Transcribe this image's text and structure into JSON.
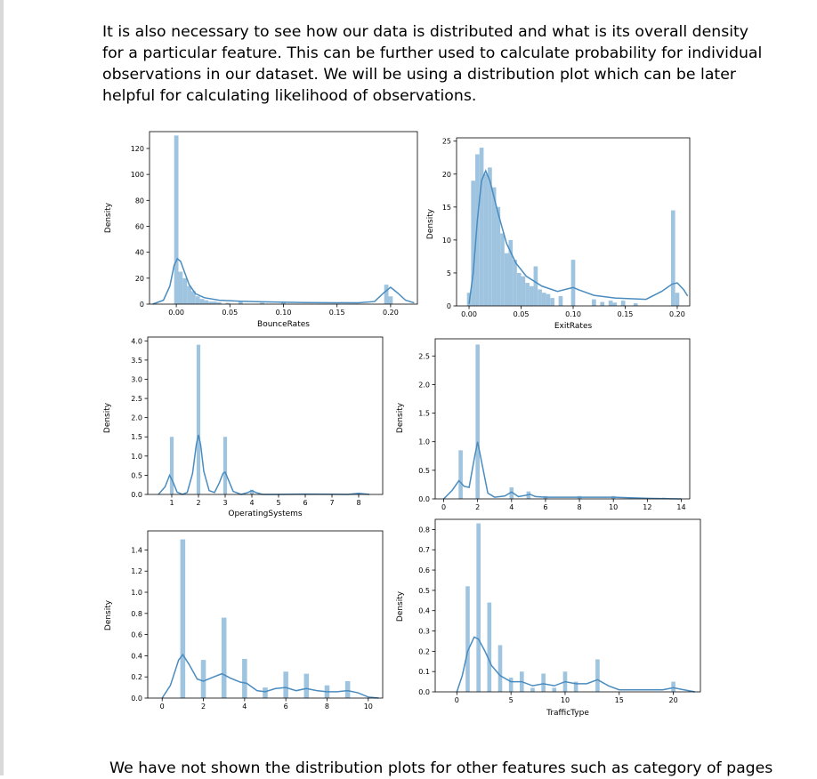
{
  "text": {
    "intro": "It is also necessary to see how our data is distributed and what is its overall density for a particular feature. This can be further used to calculate probability for individual observations in our dataset. We will be using a distribution plot which can be later helpful for calculating likelihood of observations.",
    "outro": "We have not shown the distribution plots for other features such as category of pages"
  },
  "colors": {
    "bar": "#9fc4e0",
    "line": "#4a8cbf"
  },
  "chart_data": [
    {
      "id": "bounce",
      "type": "bar",
      "xlabel": "BounceRates",
      "ylabel": "Density",
      "xlim": [
        -0.025,
        0.225
      ],
      "ylim": [
        0,
        133
      ],
      "xticks": [
        0.0,
        0.05,
        0.1,
        0.15,
        0.2
      ],
      "xticklabels": [
        "0.00",
        "0.05",
        "0.10",
        "0.15",
        "0.20"
      ],
      "yticks": [
        0,
        20,
        40,
        60,
        80,
        100,
        120
      ],
      "yticklabels": [
        "0",
        "20",
        "40",
        "60",
        "80",
        "100",
        "120"
      ],
      "bin_width": 0.004,
      "bars": [
        [
          0.0,
          130
        ],
        [
          0.004,
          25
        ],
        [
          0.008,
          20
        ],
        [
          0.012,
          14
        ],
        [
          0.016,
          10
        ],
        [
          0.02,
          6
        ],
        [
          0.024,
          4
        ],
        [
          0.028,
          3
        ],
        [
          0.032,
          2
        ],
        [
          0.036,
          2
        ],
        [
          0.04,
          1.5
        ],
        [
          0.048,
          1
        ],
        [
          0.06,
          2
        ],
        [
          0.08,
          1
        ],
        [
          0.1,
          1
        ],
        [
          0.196,
          15
        ],
        [
          0.2,
          6
        ]
      ],
      "kde": [
        [
          -0.022,
          0
        ],
        [
          -0.012,
          3
        ],
        [
          -0.006,
          14
        ],
        [
          -0.002,
          30
        ],
        [
          0.001,
          35
        ],
        [
          0.004,
          33
        ],
        [
          0.008,
          24
        ],
        [
          0.012,
          15
        ],
        [
          0.018,
          8
        ],
        [
          0.026,
          5
        ],
        [
          0.04,
          3
        ],
        [
          0.06,
          2.2
        ],
        [
          0.08,
          1.8
        ],
        [
          0.12,
          1.2
        ],
        [
          0.17,
          1
        ],
        [
          0.185,
          2
        ],
        [
          0.194,
          9
        ],
        [
          0.2,
          13
        ],
        [
          0.206,
          9
        ],
        [
          0.214,
          3
        ],
        [
          0.222,
          1
        ]
      ]
    },
    {
      "id": "exit",
      "type": "bar",
      "xlabel": "ExitRates",
      "ylabel": "Density",
      "xlim": [
        -0.012,
        0.212
      ],
      "ylim": [
        0,
        25.5
      ],
      "xticks": [
        0.0,
        0.05,
        0.1,
        0.15,
        0.2
      ],
      "xticklabels": [
        "0.00",
        "0.05",
        "0.10",
        "0.15",
        "0.20"
      ],
      "yticks": [
        0,
        5,
        10,
        15,
        20,
        25
      ],
      "yticklabels": [
        "0",
        "5",
        "10",
        "15",
        "20",
        "25"
      ],
      "bin_width": 0.004,
      "bars": [
        [
          0.0,
          2
        ],
        [
          0.004,
          19
        ],
        [
          0.008,
          23
        ],
        [
          0.012,
          24
        ],
        [
          0.016,
          20
        ],
        [
          0.02,
          21
        ],
        [
          0.024,
          18
        ],
        [
          0.028,
          15
        ],
        [
          0.032,
          11
        ],
        [
          0.036,
          8
        ],
        [
          0.04,
          10
        ],
        [
          0.044,
          7
        ],
        [
          0.048,
          5
        ],
        [
          0.052,
          4.5
        ],
        [
          0.056,
          3.5
        ],
        [
          0.06,
          3
        ],
        [
          0.064,
          6
        ],
        [
          0.068,
          2.5
        ],
        [
          0.072,
          2
        ],
        [
          0.076,
          1.8
        ],
        [
          0.08,
          1.2
        ],
        [
          0.088,
          1.5
        ],
        [
          0.1,
          7
        ],
        [
          0.12,
          1
        ],
        [
          0.128,
          0.6
        ],
        [
          0.136,
          0.8
        ],
        [
          0.14,
          0.5
        ],
        [
          0.148,
          0.8
        ],
        [
          0.16,
          0.4
        ],
        [
          0.196,
          14.5
        ],
        [
          0.2,
          2
        ]
      ],
      "kde": [
        [
          0.0,
          0.3
        ],
        [
          0.004,
          5
        ],
        [
          0.008,
          13
        ],
        [
          0.012,
          19
        ],
        [
          0.016,
          20.5
        ],
        [
          0.02,
          19
        ],
        [
          0.028,
          14
        ],
        [
          0.036,
          9.5
        ],
        [
          0.045,
          6.5
        ],
        [
          0.055,
          4.5
        ],
        [
          0.07,
          3
        ],
        [
          0.085,
          2.2
        ],
        [
          0.095,
          2.6
        ],
        [
          0.1,
          2.8
        ],
        [
          0.106,
          2.4
        ],
        [
          0.12,
          1.6
        ],
        [
          0.14,
          1.2
        ],
        [
          0.17,
          1
        ],
        [
          0.185,
          2.2
        ],
        [
          0.195,
          3.3
        ],
        [
          0.2,
          3.5
        ],
        [
          0.206,
          2.5
        ],
        [
          0.21,
          1.5
        ]
      ]
    },
    {
      "id": "os",
      "type": "bar",
      "xlabel": "OperatingSystems",
      "ylabel": "Density",
      "xlim": [
        0.1,
        8.9
      ],
      "ylim": [
        0,
        4.1
      ],
      "xticks": [
        1,
        2,
        3,
        4,
        5,
        6,
        7,
        8
      ],
      "xticklabels": [
        "1",
        "2",
        "3",
        "4",
        "5",
        "6",
        "7",
        "8"
      ],
      "yticks": [
        0,
        0.5,
        1.0,
        1.5,
        2.0,
        2.5,
        3.0,
        3.5,
        4.0
      ],
      "yticklabels": [
        "0.0",
        "0.5",
        "1.0",
        "1.5",
        "2.0",
        "2.5",
        "3.0",
        "3.5",
        "4.0"
      ],
      "bin_width": 0.14,
      "bars": [
        [
          1.0,
          1.5
        ],
        [
          2.0,
          3.9
        ],
        [
          3.0,
          1.5
        ],
        [
          4.0,
          0.12
        ],
        [
          8.0,
          0.03
        ]
      ],
      "kde": [
        [
          0.5,
          0.0
        ],
        [
          0.75,
          0.2
        ],
        [
          0.92,
          0.5
        ],
        [
          1.05,
          0.32
        ],
        [
          1.2,
          0.06
        ],
        [
          1.4,
          0.0
        ],
        [
          1.58,
          0.05
        ],
        [
          1.78,
          0.55
        ],
        [
          1.92,
          1.3
        ],
        [
          2.0,
          1.55
        ],
        [
          2.08,
          1.3
        ],
        [
          2.2,
          0.6
        ],
        [
          2.4,
          0.1
        ],
        [
          2.6,
          0.05
        ],
        [
          2.78,
          0.3
        ],
        [
          2.92,
          0.55
        ],
        [
          3.0,
          0.58
        ],
        [
          3.12,
          0.38
        ],
        [
          3.3,
          0.08
        ],
        [
          3.6,
          0.0
        ],
        [
          3.85,
          0.05
        ],
        [
          4.0,
          0.1
        ],
        [
          4.15,
          0.05
        ],
        [
          4.4,
          0.0
        ],
        [
          5.0,
          0.0
        ],
        [
          6.0,
          0.01
        ],
        [
          7.6,
          0.0
        ],
        [
          8.0,
          0.03
        ],
        [
          8.4,
          0.0
        ]
      ]
    },
    {
      "id": "browser",
      "type": "bar",
      "xlabel": "",
      "ylabel": "Density",
      "xlim": [
        -0.5,
        14.5
      ],
      "ylim": [
        0,
        2.8
      ],
      "xticks": [
        0,
        2,
        4,
        6,
        8,
        10,
        12,
        14
      ],
      "xticklabels": [
        "0",
        "2",
        "4",
        "6",
        "8",
        "10",
        "12",
        "14"
      ],
      "yticks": [
        0,
        0.5,
        1.0,
        1.5,
        2.0,
        2.5
      ],
      "yticklabels": [
        "0.0",
        "0.5",
        "1.0",
        "1.5",
        "2.0",
        "2.5"
      ],
      "bin_width": 0.24,
      "bars": [
        [
          1.0,
          0.85
        ],
        [
          2.0,
          2.7
        ],
        [
          4.0,
          0.2
        ],
        [
          5.0,
          0.13
        ],
        [
          6.0,
          0.05
        ],
        [
          8.0,
          0.05
        ],
        [
          10.0,
          0.05
        ],
        [
          13.0,
          0.02
        ]
      ],
      "kde": [
        [
          0.0,
          0.0
        ],
        [
          0.5,
          0.15
        ],
        [
          0.9,
          0.32
        ],
        [
          1.2,
          0.22
        ],
        [
          1.5,
          0.2
        ],
        [
          1.8,
          0.7
        ],
        [
          2.0,
          1.0
        ],
        [
          2.2,
          0.7
        ],
        [
          2.6,
          0.1
        ],
        [
          3.0,
          0.03
        ],
        [
          3.6,
          0.05
        ],
        [
          4.0,
          0.12
        ],
        [
          4.4,
          0.04
        ],
        [
          4.8,
          0.06
        ],
        [
          5.1,
          0.08
        ],
        [
          5.4,
          0.04
        ],
        [
          6.0,
          0.03
        ],
        [
          8.0,
          0.03
        ],
        [
          10.0,
          0.03
        ],
        [
          12.0,
          0.01
        ],
        [
          14.0,
          0.0
        ]
      ]
    },
    {
      "id": "region",
      "type": "bar",
      "xlabel": "",
      "ylabel": "Density",
      "xlim": [
        -0.7,
        10.7
      ],
      "ylim": [
        0,
        1.58
      ],
      "xticks": [
        0,
        2,
        4,
        6,
        8,
        10
      ],
      "xticklabels": [
        "0",
        "2",
        "4",
        "6",
        "8",
        "10"
      ],
      "yticks": [
        0,
        0.2,
        0.4,
        0.6,
        0.8,
        1.0,
        1.2,
        1.4
      ],
      "yticklabels": [
        "0.0",
        "0.2",
        "0.4",
        "0.6",
        "0.8",
        "1.0",
        "1.2",
        "1.4"
      ],
      "bin_width": 0.24,
      "bars": [
        [
          1.0,
          1.5
        ],
        [
          2.0,
          0.36
        ],
        [
          3.0,
          0.76
        ],
        [
          4.0,
          0.37
        ],
        [
          5.0,
          0.1
        ],
        [
          6.0,
          0.25
        ],
        [
          7.0,
          0.23
        ],
        [
          8.0,
          0.12
        ],
        [
          9.0,
          0.16
        ]
      ],
      "kde": [
        [
          0.0,
          0.0
        ],
        [
          0.4,
          0.12
        ],
        [
          0.8,
          0.36
        ],
        [
          1.0,
          0.41
        ],
        [
          1.3,
          0.32
        ],
        [
          1.7,
          0.18
        ],
        [
          2.0,
          0.16
        ],
        [
          2.5,
          0.2
        ],
        [
          2.9,
          0.23
        ],
        [
          3.3,
          0.19
        ],
        [
          3.8,
          0.15
        ],
        [
          4.1,
          0.14
        ],
        [
          4.6,
          0.07
        ],
        [
          5.0,
          0.06
        ],
        [
          5.5,
          0.09
        ],
        [
          6.0,
          0.1
        ],
        [
          6.5,
          0.07
        ],
        [
          7.0,
          0.09
        ],
        [
          7.5,
          0.07
        ],
        [
          8.0,
          0.06
        ],
        [
          8.5,
          0.06
        ],
        [
          9.0,
          0.07
        ],
        [
          9.5,
          0.05
        ],
        [
          10.0,
          0.01
        ],
        [
          10.5,
          0.0
        ]
      ]
    },
    {
      "id": "traffic",
      "type": "bar",
      "xlabel": "TrafficType",
      "ylabel": "Density",
      "xlim": [
        -2.0,
        22.5
      ],
      "ylim": [
        0,
        0.85
      ],
      "xticks": [
        0,
        5,
        10,
        15,
        20
      ],
      "xticklabels": [
        "0",
        "5",
        "10",
        "15",
        "20"
      ],
      "yticks": [
        0,
        0.1,
        0.2,
        0.3,
        0.4,
        0.5,
        0.6,
        0.7,
        0.8
      ],
      "yticklabels": [
        "0.0",
        "0.1",
        "0.2",
        "0.3",
        "0.4",
        "0.5",
        "0.6",
        "0.7",
        "0.8"
      ],
      "bin_width": 0.38,
      "bars": [
        [
          1.0,
          0.52
        ],
        [
          2.0,
          0.83
        ],
        [
          3.0,
          0.44
        ],
        [
          4.0,
          0.23
        ],
        [
          5.0,
          0.07
        ],
        [
          6.0,
          0.1
        ],
        [
          7.0,
          0.02
        ],
        [
          8.0,
          0.09
        ],
        [
          9.0,
          0.02
        ],
        [
          10.0,
          0.1
        ],
        [
          11.0,
          0.05
        ],
        [
          13.0,
          0.16
        ],
        [
          20.0,
          0.05
        ]
      ],
      "kde": [
        [
          0.0,
          0.0
        ],
        [
          0.5,
          0.08
        ],
        [
          1.0,
          0.2
        ],
        [
          1.6,
          0.27
        ],
        [
          2.0,
          0.26
        ],
        [
          2.6,
          0.2
        ],
        [
          3.2,
          0.13
        ],
        [
          4.0,
          0.08
        ],
        [
          5.0,
          0.05
        ],
        [
          6.0,
          0.05
        ],
        [
          7.0,
          0.03
        ],
        [
          8.0,
          0.04
        ],
        [
          9.0,
          0.03
        ],
        [
          10.0,
          0.05
        ],
        [
          11.0,
          0.04
        ],
        [
          12.0,
          0.04
        ],
        [
          13.0,
          0.06
        ],
        [
          14.0,
          0.03
        ],
        [
          15.0,
          0.01
        ],
        [
          19.0,
          0.01
        ],
        [
          20.0,
          0.02
        ],
        [
          21.0,
          0.01
        ],
        [
          22.0,
          0.0
        ]
      ]
    }
  ]
}
